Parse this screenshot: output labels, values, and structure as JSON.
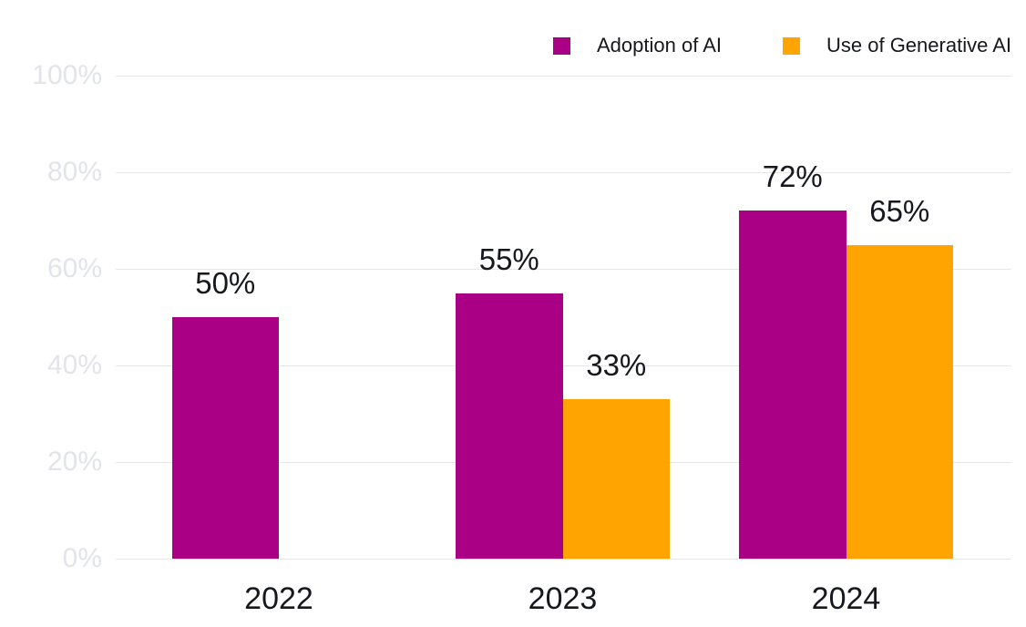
{
  "chart_data": {
    "type": "bar",
    "title": "",
    "categories": [
      "2022",
      "2023",
      "2024"
    ],
    "series": [
      {
        "name": "Adoption of AI",
        "color": "#AA0086",
        "values": [
          50,
          55,
          72
        ],
        "labels": [
          "50%",
          "55%",
          "72%"
        ]
      },
      {
        "name": "Use of Generative AI",
        "color": "#FFA400",
        "values": [
          null,
          33,
          65
        ],
        "labels": [
          null,
          "33%",
          "65%"
        ]
      }
    ],
    "xlabel": "",
    "ylabel": "",
    "ylim": [
      0,
      100
    ],
    "y_ticks": [
      "100%",
      "80%",
      "60%",
      "40%",
      "20%",
      "0%"
    ],
    "y_tick_values": [
      100,
      80,
      60,
      40,
      20,
      0
    ],
    "grid": true,
    "legend_position": "top-right",
    "styles": {
      "grid_color": "#E7E7E9",
      "y_tick_label_color": "#E2E4EA",
      "text_color": "#16181D",
      "background": "#FFFFFF"
    }
  }
}
